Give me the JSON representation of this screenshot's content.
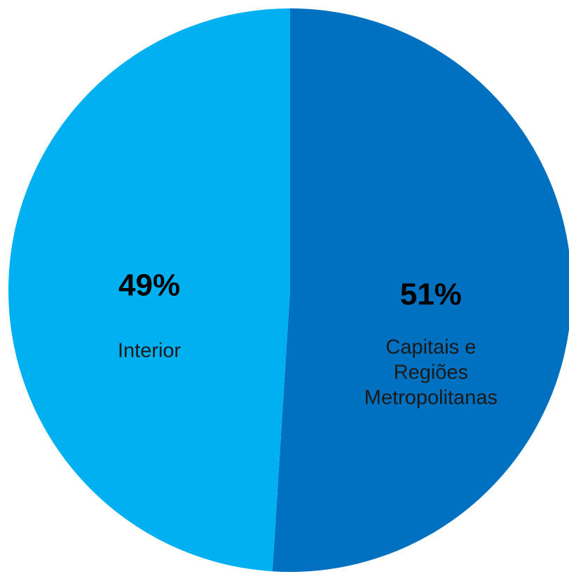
{
  "chart_data": {
    "type": "pie",
    "start": "top",
    "direction": "clockwise",
    "slices": [
      {
        "label": "Capitais e Regiões Metropolitanas",
        "label_lines": [
          "Capitais e",
          "Regiões",
          "Metropolitanas"
        ],
        "value": 51,
        "display": "51%",
        "color": "#0070C0"
      },
      {
        "label": "Interior",
        "label_lines": [
          "Interior"
        ],
        "value": 49,
        "display": "49%",
        "color": "#00B0F0"
      }
    ]
  }
}
